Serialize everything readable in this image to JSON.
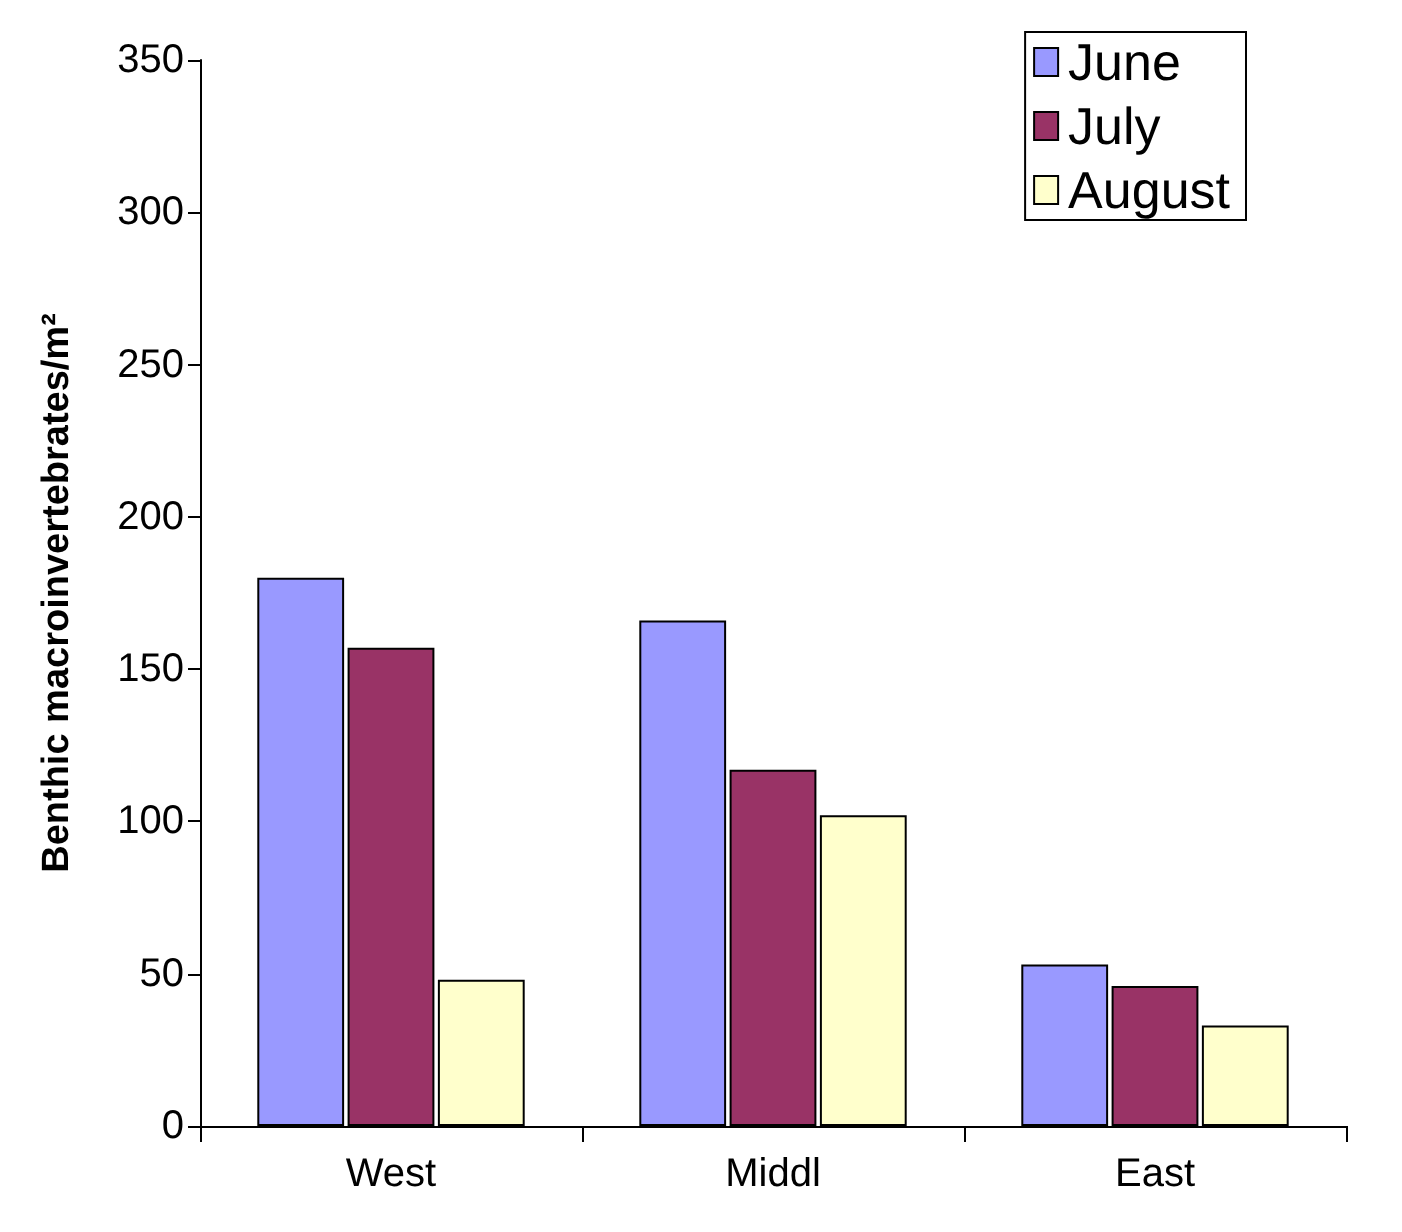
{
  "chart_data": {
    "type": "bar",
    "ylabel": "Benthic macroinvertebrates/m²",
    "categories": [
      "West",
      "Middl",
      "East"
    ],
    "series": [
      {
        "name": "June",
        "color": "#9999ff",
        "values": [
          180,
          166,
          53
        ]
      },
      {
        "name": "July",
        "color": "#993366",
        "values": [
          157,
          117,
          46
        ]
      },
      {
        "name": "August",
        "color": "#ffffcc",
        "values": [
          48,
          102,
          33
        ]
      }
    ],
    "ylim": [
      0,
      350
    ],
    "yticks": [
      0,
      50,
      100,
      150,
      200,
      250,
      300,
      350
    ],
    "grid": false,
    "legend": "top right"
  }
}
